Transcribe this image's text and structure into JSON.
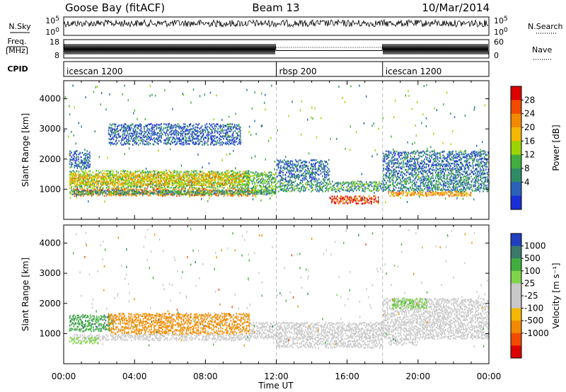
{
  "header": {
    "station": "Goose Bay (fitACF)",
    "beam": "Beam 13",
    "date": "10/Mar/2014"
  },
  "strip_labels": {
    "nsky": "N.Sky",
    "nsearch": "N.Search",
    "freq_line1": "Freq.",
    "freq_line2": "[MHz]",
    "nave": "Nave",
    "cpid": "CPID",
    "nsky_top": "10^5",
    "nsky_bottom": "10^0",
    "nsearch_top": "10^5",
    "nsearch_bottom": "10^0",
    "freq_top": "18",
    "freq_bottom": "8",
    "nave_top": "60",
    "nave_bottom": "0"
  },
  "cpid_segments": [
    {
      "name": "icescan 1200",
      "start_hour": 0,
      "end_hour": 12
    },
    {
      "name": "rbsp 200",
      "start_hour": 12,
      "end_hour": 18
    },
    {
      "name": "icescan 1200",
      "start_hour": 18,
      "end_hour": 24
    }
  ],
  "chart_data": [
    {
      "type": "heatmap",
      "panel": "power",
      "ylabel": "Slant Range [km]",
      "xlabel": "",
      "colorbar_label": "Power [dB]",
      "ylim": [
        0,
        4600
      ],
      "xlim": [
        0,
        24
      ],
      "yticks": [
        1000,
        2000,
        3000,
        4000
      ],
      "colorbar_ticks": [
        "28",
        "24",
        "20",
        "16",
        "12",
        "8",
        "4"
      ],
      "colorbar_colors": [
        "#dd0000",
        "#f24a00",
        "#f08a00",
        "#f5b800",
        "#9bd400",
        "#3fae3f",
        "#2e8b66",
        "#2a63b8",
        "#1a2fd6"
      ],
      "bands": [
        {
          "t0": 0.3,
          "t1": 10.5,
          "r0": 1050,
          "r1": 1650,
          "value": 14
        },
        {
          "t0": 0.3,
          "t1": 10.2,
          "r0": 1150,
          "r1": 1550,
          "value": 20
        },
        {
          "t0": 0.5,
          "t1": 10.8,
          "r0": 800,
          "r1": 1050,
          "value": 24
        },
        {
          "t0": 0.3,
          "t1": 12.0,
          "r0": 850,
          "r1": 1000,
          "value": 10
        },
        {
          "t0": 10.2,
          "t1": 12.0,
          "r0": 900,
          "r1": 1600,
          "value": 12
        },
        {
          "t0": 12.0,
          "t1": 18.0,
          "r0": 950,
          "r1": 1300,
          "value": 10
        },
        {
          "t0": 12.0,
          "t1": 15.0,
          "r0": 1300,
          "r1": 2000,
          "value": 6
        },
        {
          "t0": 15.0,
          "t1": 17.8,
          "r0": 550,
          "r1": 800,
          "value": 28
        },
        {
          "t0": 18.0,
          "t1": 24.0,
          "r0": 950,
          "r1": 1550,
          "value": 8
        },
        {
          "t0": 18.0,
          "t1": 24.0,
          "r0": 1550,
          "r1": 2300,
          "value": 6
        },
        {
          "t0": 18.3,
          "t1": 23.0,
          "r0": 800,
          "r1": 950,
          "value": 22
        },
        {
          "t0": 2.5,
          "t1": 10.0,
          "r0": 2500,
          "r1": 3200,
          "value": 5
        },
        {
          "t0": 0.3,
          "t1": 1.5,
          "r0": 1700,
          "r1": 2300,
          "value": 6
        }
      ]
    },
    {
      "type": "heatmap",
      "panel": "velocity",
      "ylabel": "Slant Range [km]",
      "xlabel": "Time UT",
      "colorbar_label": "Velocity [m s⁻¹]",
      "ylim": [
        0,
        4600
      ],
      "xlim": [
        0,
        24
      ],
      "yticks": [
        1000,
        2000,
        3000,
        4000
      ],
      "xticks": [
        "00:00",
        "04:00",
        "08:00",
        "12:00",
        "16:00",
        "20:00",
        "00:00"
      ],
      "xtick_hours": [
        0,
        4,
        8,
        12,
        16,
        20,
        24
      ],
      "colorbar_ticks": [
        "1000",
        "500",
        "100",
        "25",
        "-25",
        "-100",
        "-500",
        "-1000"
      ],
      "colorbar_colors": [
        "#2040c0",
        "#3a7a6a",
        "#3fae3f",
        "#7fd44a",
        "#c8c8c8",
        "#c8c8c8",
        "#f5b800",
        "#f08a00",
        "#f24a00",
        "#dd0000"
      ],
      "bands": [
        {
          "t0": 0.3,
          "t1": 2.8,
          "r0": 1100,
          "r1": 1650,
          "value": 400
        },
        {
          "t0": 2.5,
          "t1": 10.5,
          "r0": 1000,
          "r1": 1700,
          "value": -250
        },
        {
          "t0": 0.5,
          "t1": 10.5,
          "r0": 800,
          "r1": 1000,
          "value": 0
        },
        {
          "t0": 0.3,
          "t1": 2.0,
          "r0": 700,
          "r1": 900,
          "value": 60
        },
        {
          "t0": 10.5,
          "t1": 24.0,
          "r0": 850,
          "r1": 1400,
          "value": 0
        },
        {
          "t0": 12.0,
          "t1": 18.0,
          "r0": 550,
          "r1": 850,
          "value": 0
        },
        {
          "t0": 18.0,
          "t1": 24.0,
          "r0": 1400,
          "r1": 2200,
          "value": 0
        },
        {
          "t0": 18.5,
          "t1": 20.5,
          "r0": 1850,
          "r1": 2200,
          "value": 80
        },
        {
          "t0": 18.3,
          "t1": 20.0,
          "r0": 650,
          "r1": 850,
          "value": 0
        }
      ]
    }
  ]
}
